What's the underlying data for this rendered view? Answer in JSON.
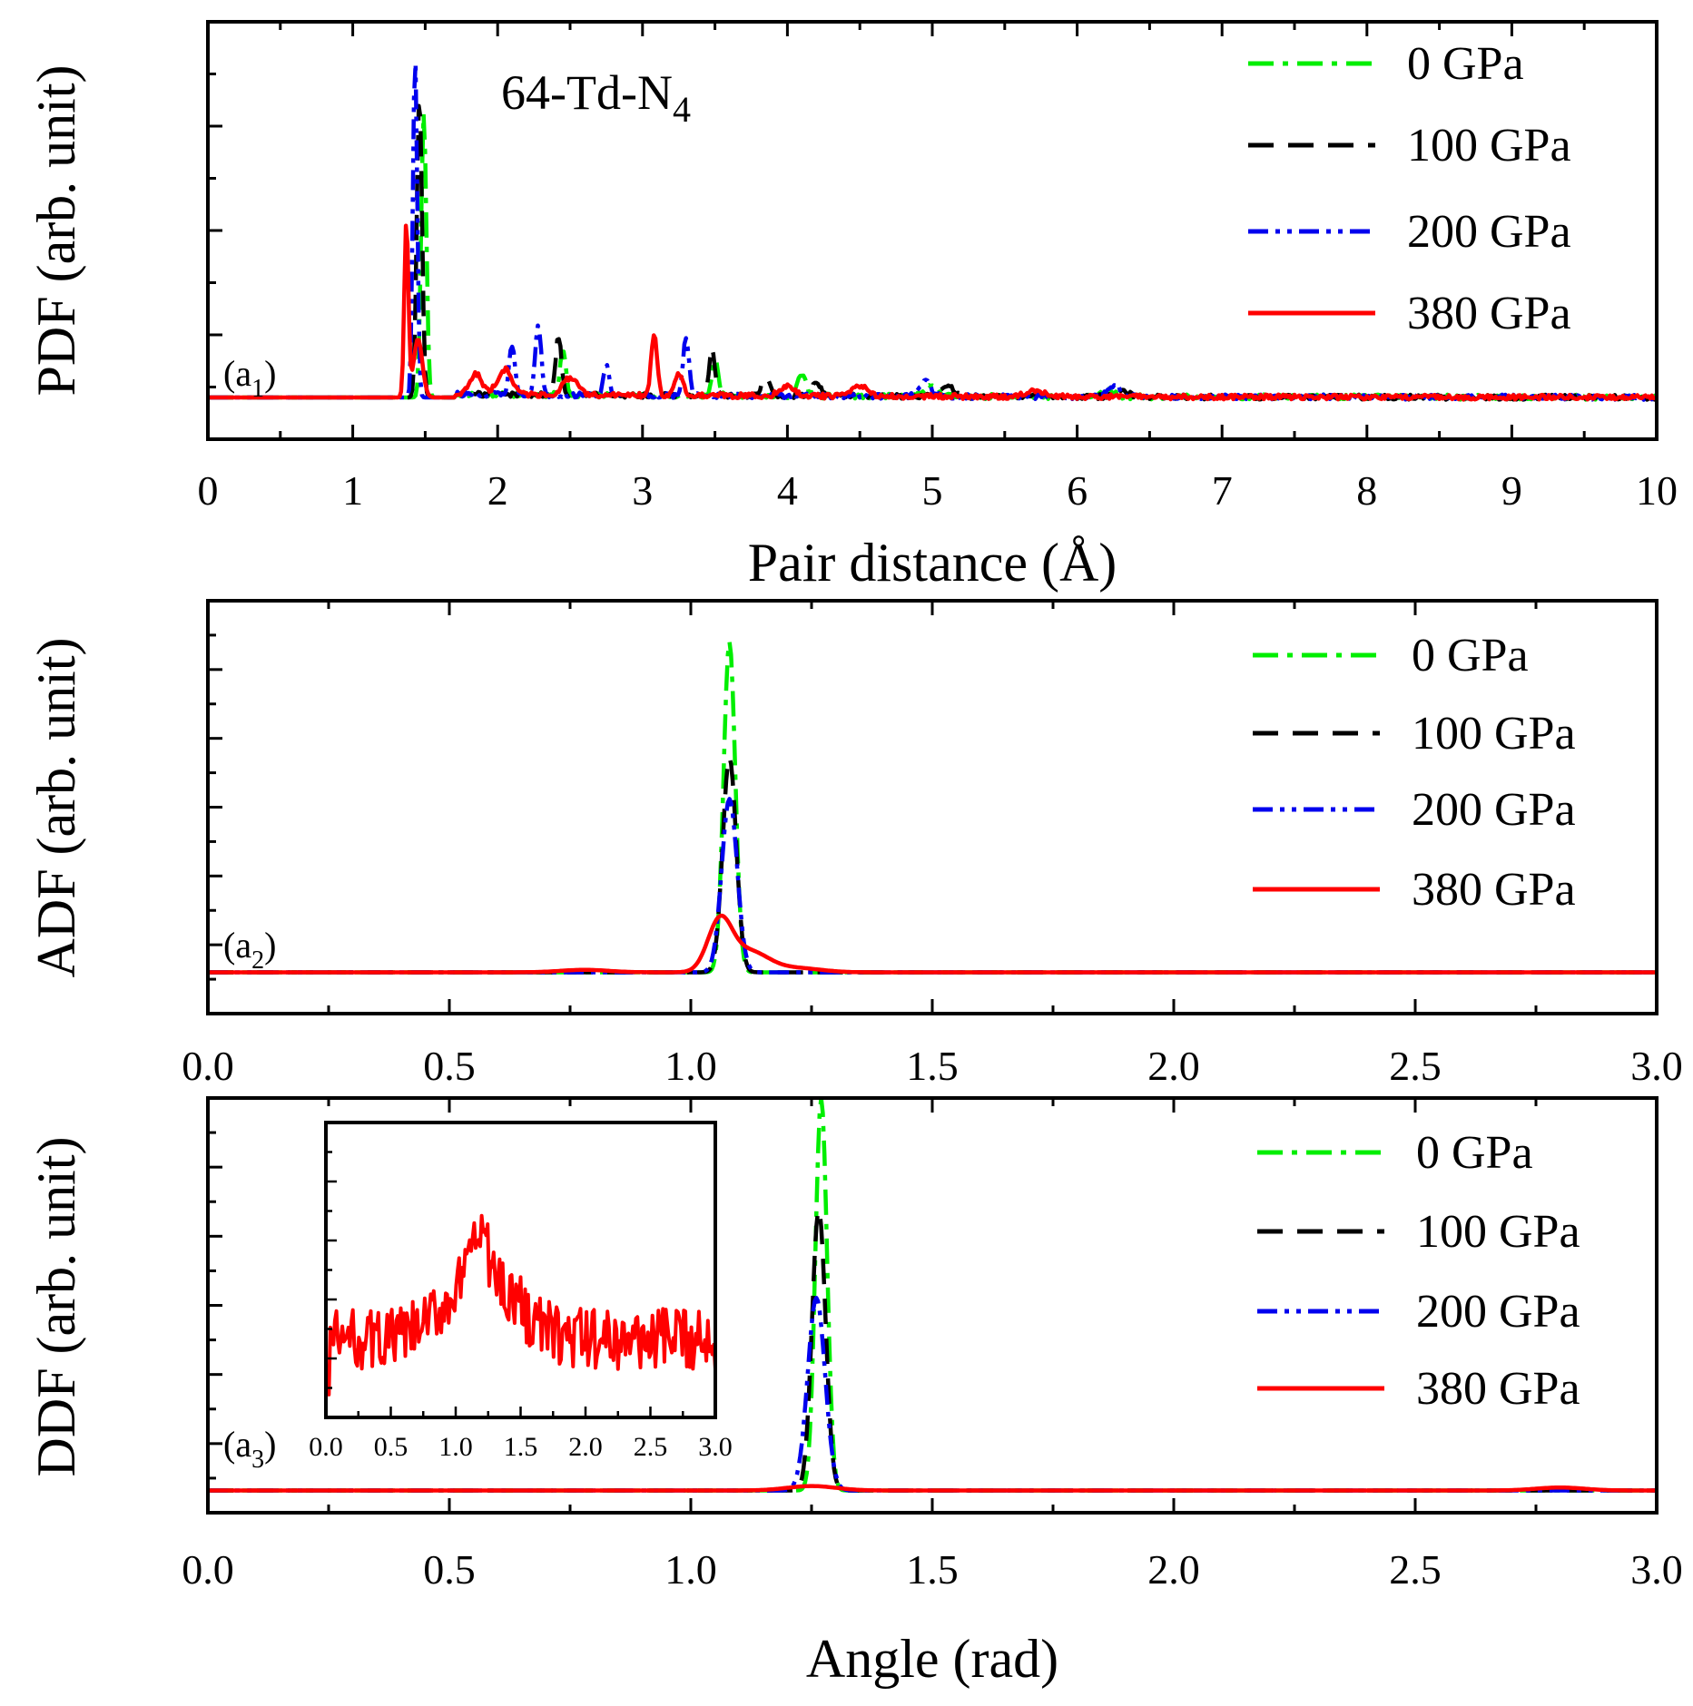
{
  "chart_data": [
    {
      "id": "a1",
      "type": "line",
      "panel_label": "(a",
      "panel_label_sub": "1",
      "panel_label_end": ")",
      "title_main": "64-Td-N",
      "title_sub": "4",
      "xlabel": "Pair distance  (Å)",
      "ylabel": "PDF (arb. unit)",
      "xlim": [
        0,
        10
      ],
      "ylim": [
        -0.5,
        4.5
      ],
      "xticks": [
        "0",
        "1",
        "2",
        "3",
        "4",
        "5",
        "6",
        "7",
        "8",
        "9",
        "10"
      ],
      "series": [
        {
          "name": "0 GPa",
          "color": "#00ee00",
          "dash": "28 10 6 10",
          "peaks": [
            [
              1.49,
              3.4,
              0.018
            ],
            [
              2.45,
              0.55,
              0.02
            ],
            [
              3.5,
              0.45,
              0.02
            ],
            [
              4.1,
              0.25,
              0.03
            ],
            [
              5.0,
              0.12,
              0.05
            ],
            [
              6.2,
              0.08,
              0.05
            ]
          ]
        },
        {
          "name": "100 GPa",
          "color": "#000000",
          "dash": "28 16",
          "peaks": [
            [
              1.46,
              3.6,
              0.018
            ],
            [
              2.42,
              0.7,
              0.02
            ],
            [
              3.48,
              0.55,
              0.02
            ],
            [
              3.85,
              0.2,
              0.03
            ],
            [
              4.2,
              0.15,
              0.03
            ],
            [
              5.1,
              0.12,
              0.05
            ],
            [
              6.3,
              0.08,
              0.05
            ]
          ]
        },
        {
          "name": "200 GPa",
          "color": "#0000ee",
          "dash": "22 8 5 8 5 8",
          "peaks": [
            [
              1.43,
              4.1,
              0.015
            ],
            [
              2.1,
              0.6,
              0.02
            ],
            [
              2.28,
              0.85,
              0.02
            ],
            [
              2.75,
              0.35,
              0.02
            ],
            [
              3.3,
              0.7,
              0.02
            ],
            [
              4.95,
              0.18,
              0.04
            ],
            [
              6.25,
              0.12,
              0.05
            ]
          ]
        },
        {
          "name": "380 GPa",
          "color": "#ff0000",
          "dash": "",
          "peaks": [
            [
              1.37,
              2.1,
              0.014
            ],
            [
              1.45,
              0.7,
              0.03
            ],
            [
              1.85,
              0.25,
              0.04
            ],
            [
              2.05,
              0.3,
              0.05
            ],
            [
              2.5,
              0.2,
              0.05
            ],
            [
              3.08,
              0.75,
              0.02
            ],
            [
              3.25,
              0.25,
              0.03
            ],
            [
              4.0,
              0.12,
              0.05
            ],
            [
              4.5,
              0.12,
              0.05
            ],
            [
              5.7,
              0.08,
              0.06
            ]
          ]
        }
      ]
    },
    {
      "id": "a2",
      "type": "line",
      "panel_label": "(a",
      "panel_label_sub": "2",
      "panel_label_end": ")",
      "xlabel": "",
      "ylabel": "ADF (arb. unit)",
      "xlim": [
        0,
        3.0
      ],
      "ylim": [
        -0.5,
        4.5
      ],
      "xticks": [
        "0.0",
        "0.5",
        "1.0",
        "1.5",
        "2.0",
        "2.5",
        "3.0"
      ],
      "series": [
        {
          "name": "0 GPa",
          "color": "#00ee00",
          "dash": "28 10 6 10",
          "peaks": [
            [
              1.08,
              4.0,
              0.012
            ]
          ]
        },
        {
          "name": "100 GPa",
          "color": "#000000",
          "dash": "28 16",
          "peaks": [
            [
              1.08,
              2.6,
              0.014
            ]
          ]
        },
        {
          "name": "200 GPa",
          "color": "#0000ee",
          "dash": "22 8 5 8 5 8",
          "peaks": [
            [
              1.08,
              2.1,
              0.016
            ]
          ]
        },
        {
          "name": "380 GPa",
          "color": "#ff0000",
          "dash": "",
          "peaks": [
            [
              1.06,
              0.6,
              0.025
            ],
            [
              1.12,
              0.25,
              0.04
            ],
            [
              1.22,
              0.05,
              0.05
            ],
            [
              0.78,
              0.03,
              0.05
            ]
          ]
        }
      ]
    },
    {
      "id": "a3",
      "type": "line",
      "panel_label": "(a",
      "panel_label_sub": "3",
      "panel_label_end": ")",
      "xlabel": "Angle (rad)",
      "ylabel": "DDF (arb. unit)",
      "xlim": [
        0,
        3.0
      ],
      "ylim": [
        -0.3,
        5.3
      ],
      "xticks": [
        "0.0",
        "0.5",
        "1.0",
        "1.5",
        "2.0",
        "2.5",
        "3.0"
      ],
      "series": [
        {
          "name": "0 GPa",
          "color": "#00ee00",
          "dash": "28 10 6 10",
          "peaks": [
            [
              1.27,
              5.3,
              0.012
            ]
          ]
        },
        {
          "name": "100 GPa",
          "color": "#000000",
          "dash": "28 16",
          "peaks": [
            [
              1.265,
              3.8,
              0.014
            ]
          ]
        },
        {
          "name": "200 GPa",
          "color": "#0000ee",
          "dash": "22 8 5 8 5 8",
          "peaks": [
            [
              1.26,
              2.6,
              0.018
            ]
          ]
        },
        {
          "name": "380 GPa",
          "color": "#ff0000",
          "dash": "",
          "peaks": [
            [
              1.25,
              0.06,
              0.05
            ],
            [
              2.8,
              0.04,
              0.05
            ]
          ]
        }
      ],
      "inset": {
        "xlim": [
          0,
          3.0
        ],
        "xticks": [
          "0.0",
          "0.5",
          "1.0",
          "1.5",
          "2.0",
          "2.5",
          "3.0"
        ],
        "series_name": "380 GPa",
        "color": "#ff0000"
      }
    }
  ]
}
